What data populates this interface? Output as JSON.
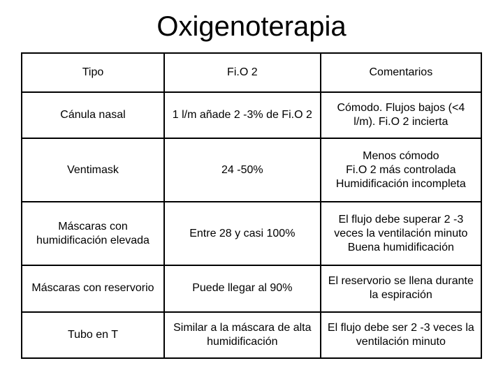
{
  "title": "Oxigenoterapia",
  "table": {
    "columns": [
      "Tipo",
      "Fi.O 2",
      "Comentarios"
    ],
    "col_widths_pct": [
      31,
      34,
      35
    ],
    "rows": [
      [
        "Cánula nasal",
        "1 l/m añade 2 -3% de Fi.O 2",
        "Cómodo. Flujos bajos (<4 l/m). Fi.O 2 incierta"
      ],
      [
        "Ventimask",
        "24 -50%",
        "Menos cómodo\nFi.O 2 más controlada\nHumidificación incompleta"
      ],
      [
        "Máscaras con humidificación elevada",
        "Entre 28 y casi 100%",
        "El flujo debe superar 2 -3 veces la ventilación minuto\nBuena humidificación"
      ],
      [
        "Máscaras con reservorio",
        "Puede llegar al 90%",
        "El reservorio se llena durante la espiración"
      ],
      [
        "Tubo en T",
        "Similar a la máscara de alta humidificación",
        "El flujo debe ser 2 -3 veces la ventilación minuto"
      ]
    ],
    "border_color": "#000000",
    "background_color": "#ffffff",
    "title_font": "Comic Sans MS",
    "title_fontsize": 40,
    "cell_fontsize": 16
  }
}
